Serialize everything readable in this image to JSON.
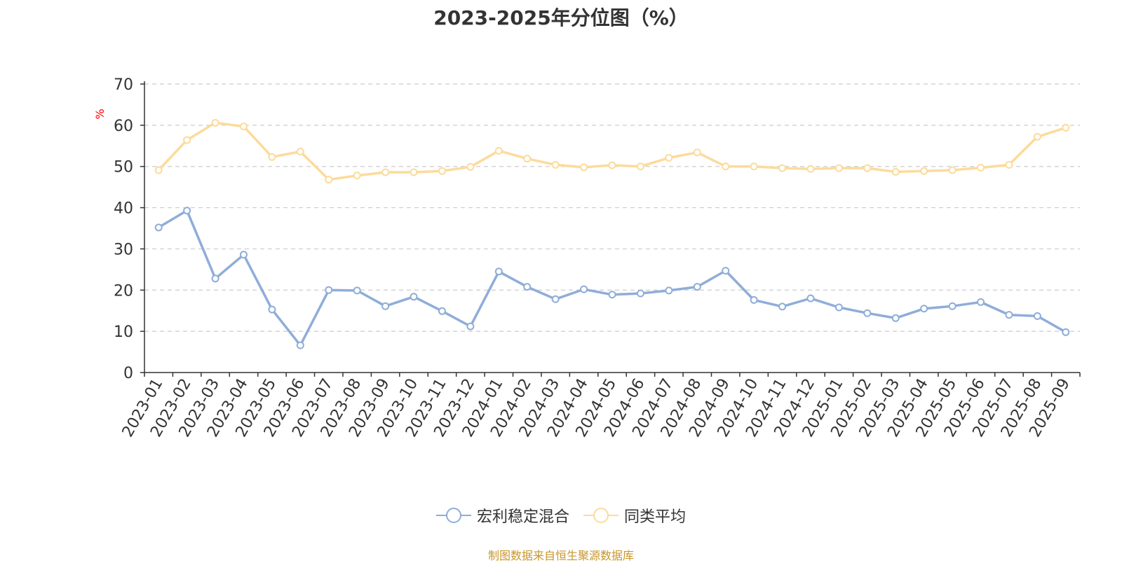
{
  "title": "2023-2025年分位图（%）",
  "source": "制图数据来自恒生聚源数据库",
  "colors": {
    "series1": "#8fadd9",
    "series2": "#fcdb9b",
    "axis": "#333333",
    "grid": "#cccccc",
    "unit": "#ff0000"
  },
  "chart_data": {
    "type": "line",
    "ylabel": "%",
    "ylim": [
      0,
      70
    ],
    "yticks": [
      "0",
      "10",
      "20",
      "30",
      "40",
      "50",
      "60",
      "70"
    ],
    "grid": true,
    "legend_position": "bottom-center",
    "categories": [
      "2023-01",
      "2023-02",
      "2023-03",
      "2023-04",
      "2023-05",
      "2023-06",
      "2023-07",
      "2023-08",
      "2023-09",
      "2023-10",
      "2023-11",
      "2023-12",
      "2024-01",
      "2024-02",
      "2024-03",
      "2024-04",
      "2024-05",
      "2024-06",
      "2024-07",
      "2024-08",
      "2024-09",
      "2024-10",
      "2024-11",
      "2024-12",
      "2025-01",
      "2025-02",
      "2025-03",
      "2025-04",
      "2025-05",
      "2025-06",
      "2025-07",
      "2025-08",
      "2025-09"
    ],
    "series": [
      {
        "name": "宏利稳定混合",
        "values": [
          35.2,
          39.3,
          22.8,
          28.6,
          15.3,
          6.6,
          20.0,
          19.9,
          16.1,
          18.4,
          14.9,
          11.2,
          24.5,
          20.8,
          17.8,
          20.2,
          18.9,
          19.2,
          19.9,
          20.8,
          24.7,
          17.6,
          16.0,
          18.0,
          15.8,
          14.4,
          13.2,
          15.5,
          16.1,
          17.1,
          14.0,
          13.7,
          9.8
        ]
      },
      {
        "name": "同类平均",
        "values": [
          49.1,
          56.4,
          60.6,
          59.7,
          52.3,
          53.6,
          46.8,
          47.8,
          48.6,
          48.6,
          48.9,
          49.9,
          53.8,
          51.9,
          50.4,
          49.8,
          50.3,
          50.0,
          52.1,
          53.4,
          50.0,
          50.0,
          49.6,
          49.4,
          49.6,
          49.6,
          48.7,
          48.9,
          49.1,
          49.7,
          50.4,
          57.2,
          59.4
        ]
      }
    ]
  }
}
